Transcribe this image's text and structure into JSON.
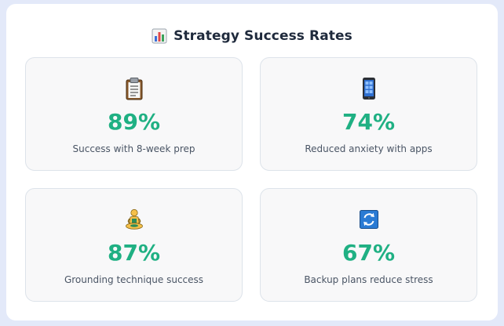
{
  "header": {
    "title": "Strategy Success Rates",
    "icon": "bar-chart-icon"
  },
  "colors": {
    "background": "#e3e9f9",
    "panel": "#ffffff",
    "card": "#f8f8f9",
    "card_border": "#dde3ea",
    "accent": "#1fb083",
    "title": "#1f2a3c",
    "label": "#4a5565"
  },
  "cards": [
    {
      "icon": "clipboard-icon",
      "value": "89%",
      "label": "Success with 8-week prep"
    },
    {
      "icon": "mobile-phone-icon",
      "value": "74%",
      "label": "Reduced anxiety with apps"
    },
    {
      "icon": "meditation-icon",
      "value": "87%",
      "label": "Grounding technique success"
    },
    {
      "icon": "refresh-icon",
      "value": "67%",
      "label": "Backup plans reduce stress"
    }
  ]
}
